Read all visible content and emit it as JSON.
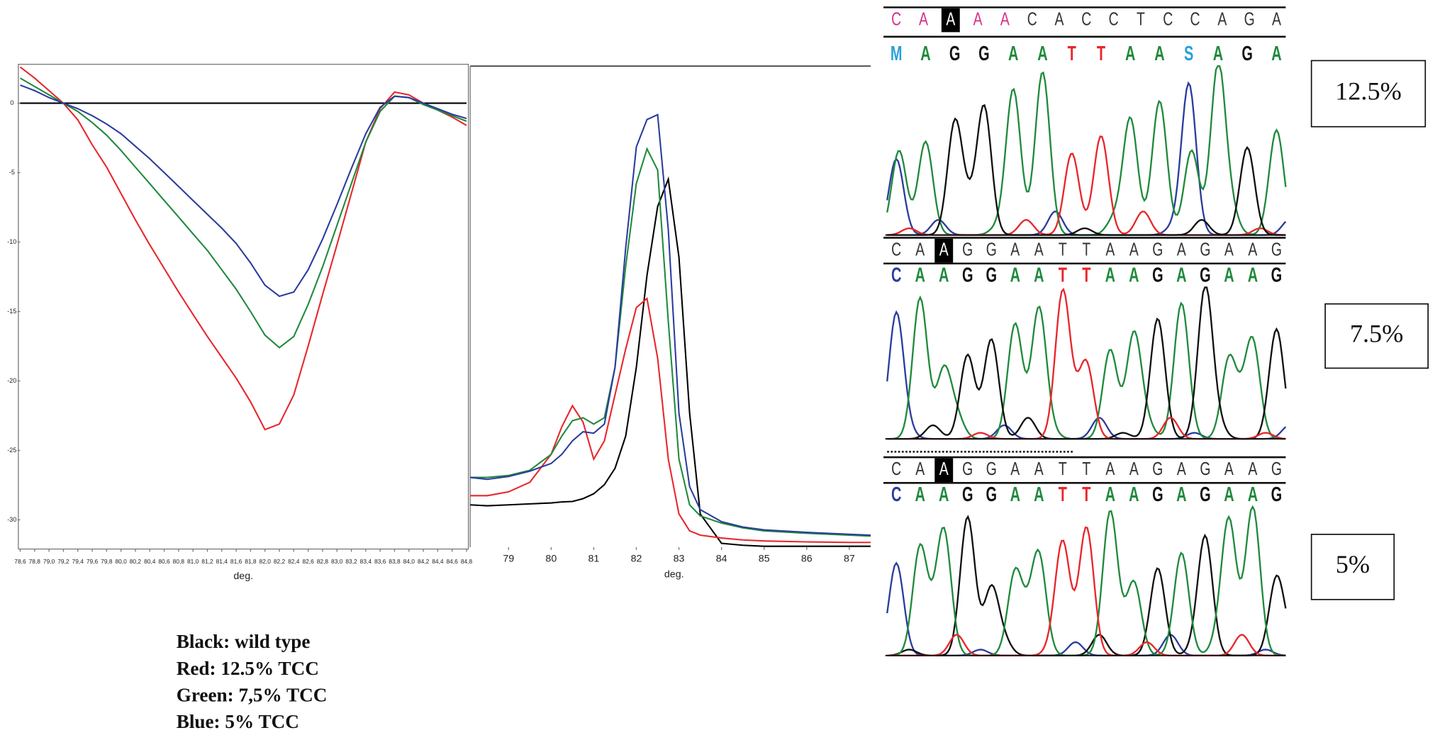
{
  "chart_data": [
    {
      "type": "line",
      "x": [
        78.6,
        78.8,
        79.0,
        79.2,
        79.4,
        79.6,
        79.8,
        80.0,
        80.2,
        80.4,
        80.6,
        80.8,
        81.0,
        81.2,
        81.4,
        81.6,
        81.8,
        82.0,
        82.2,
        82.4,
        82.6,
        82.8,
        83.0,
        83.2,
        83.4,
        83.6,
        83.8,
        84.0,
        84.2,
        84.4,
        84.6,
        84.8
      ],
      "series": [
        {
          "color": "#000000",
          "values": [
            0,
            0,
            0,
            0,
            0,
            0,
            0,
            0,
            0,
            0,
            0,
            0,
            0,
            0,
            0,
            0,
            0,
            0,
            0,
            0,
            0,
            0,
            0,
            0,
            0,
            0,
            0,
            0,
            0,
            0,
            0,
            0
          ]
        },
        {
          "color": "#e8262a",
          "values": [
            2.6,
            1.8,
            0.9,
            0.0,
            -1.2,
            -3.0,
            -4.6,
            -6.5,
            -8.4,
            -10.2,
            -11.9,
            -13.6,
            -15.2,
            -16.8,
            -18.3,
            -19.8,
            -21.5,
            -23.5,
            -23.1,
            -21.0,
            -17.5,
            -13.8,
            -10.2,
            -6.5,
            -2.8,
            -0.4,
            0.8,
            0.6,
            0.0,
            -0.5,
            -1.0,
            -1.6
          ]
        },
        {
          "color": "#1f8a3c",
          "values": [
            1.8,
            1.2,
            0.6,
            0.0,
            -0.6,
            -1.4,
            -2.3,
            -3.4,
            -4.6,
            -5.8,
            -7.0,
            -8.2,
            -9.4,
            -10.6,
            -12.0,
            -13.4,
            -15.0,
            -16.7,
            -17.6,
            -16.8,
            -14.5,
            -11.8,
            -8.8,
            -5.8,
            -2.8,
            -0.6,
            0.5,
            0.4,
            -0.1,
            -0.5,
            -0.9,
            -1.3
          ]
        },
        {
          "color": "#2b3c9e",
          "values": [
            1.3,
            0.9,
            0.4,
            0.0,
            -0.4,
            -0.9,
            -1.5,
            -2.2,
            -3.1,
            -4.0,
            -5.0,
            -6.0,
            -7.0,
            -8.0,
            -9.0,
            -10.1,
            -11.5,
            -13.1,
            -13.9,
            -13.6,
            -12.0,
            -9.8,
            -7.3,
            -4.7,
            -2.2,
            -0.3,
            0.5,
            0.4,
            0.0,
            -0.4,
            -0.8,
            -1.1
          ]
        }
      ],
      "xlim": [
        78.6,
        84.8
      ],
      "ylim": [
        -32.1,
        2.8
      ],
      "xticks": [
        {
          "value": 78.6,
          "label": "78,6"
        },
        {
          "value": 78.8,
          "label": "78,8"
        },
        {
          "value": 79.0,
          "label": "79,0"
        },
        {
          "value": 79.2,
          "label": "79,2"
        },
        {
          "value": 79.4,
          "label": "79,4"
        },
        {
          "value": 79.6,
          "label": "79,6"
        },
        {
          "value": 79.8,
          "label": "79,8"
        },
        {
          "value": 80.0,
          "label": "80,0"
        },
        {
          "value": 80.2,
          "label": "80,2"
        },
        {
          "value": 80.4,
          "label": "80,4"
        },
        {
          "value": 80.6,
          "label": "80,6"
        },
        {
          "value": 80.8,
          "label": "80,8"
        },
        {
          "value": 81.0,
          "label": "81,0"
        },
        {
          "value": 81.2,
          "label": "81,2"
        },
        {
          "value": 81.4,
          "label": "81,4"
        },
        {
          "value": 81.6,
          "label": "81,6"
        },
        {
          "value": 81.8,
          "label": "81,8"
        },
        {
          "value": 82.0,
          "label": "82,0"
        },
        {
          "value": 82.2,
          "label": "82,2"
        },
        {
          "value": 82.4,
          "label": "82,4"
        },
        {
          "value": 82.6,
          "label": "82,6"
        },
        {
          "value": 82.8,
          "label": "82,8"
        },
        {
          "value": 83.0,
          "label": "83,0"
        },
        {
          "value": 83.2,
          "label": "83,2"
        },
        {
          "value": 83.4,
          "label": "83,4"
        },
        {
          "value": 83.6,
          "label": "83,6"
        },
        {
          "value": 83.8,
          "label": "83,8"
        },
        {
          "value": 84.0,
          "label": "84,0"
        },
        {
          "value": 84.2,
          "label": "84,2"
        },
        {
          "value": 84.4,
          "label": "84,4"
        },
        {
          "value": 84.6,
          "label": "84,6"
        },
        {
          "value": 84.8,
          "label": "84,8"
        }
      ],
      "yticks": [
        0,
        -5,
        -10,
        -15,
        -20,
        -25,
        -30
      ],
      "x_label": "deg."
    },
    {
      "type": "line",
      "x": [
        78.1,
        78.5,
        79,
        79.5,
        80,
        80.25,
        80.5,
        80.75,
        81,
        81.25,
        81.5,
        81.75,
        82,
        82.25,
        82.5,
        82.75,
        83,
        83.25,
        83.5,
        84,
        84.5,
        85,
        86,
        87,
        87.5
      ],
      "series": [
        {
          "color": "#000000",
          "values": [
            8.8,
            8.6,
            8.8,
            9.0,
            9.2,
            9.4,
            9.5,
            10.1,
            11.1,
            13.0,
            16.4,
            23.1,
            37.4,
            56.5,
            70.8,
            76.5,
            60.3,
            27.9,
            6.9,
            0.8,
            0.4,
            0.2,
            0.2,
            0.2,
            0.2
          ]
        },
        {
          "color": "#e8262a",
          "values": [
            10.7,
            10.7,
            11.5,
            13.5,
            19.3,
            25.0,
            29.4,
            26.0,
            18.3,
            22.1,
            31.7,
            41.2,
            49.8,
            51.7,
            39.3,
            18.3,
            6.9,
            3.4,
            2.5,
            1.9,
            1.5,
            1.3,
            1.1,
            1.0,
            1.0
          ]
        },
        {
          "color": "#1f8a3c",
          "values": [
            14.5,
            14.5,
            14.9,
            16.0,
            19.3,
            23.1,
            26.3,
            26.9,
            25.6,
            26.9,
            37.4,
            58.4,
            75.6,
            82.8,
            78.4,
            46.9,
            18.3,
            8.8,
            6.5,
            5.0,
            4.0,
            3.4,
            2.9,
            2.5,
            2.3
          ]
        },
        {
          "color": "#2b3c9e",
          "values": [
            14.5,
            14.1,
            14.7,
            15.8,
            17.4,
            19.3,
            22.1,
            24.0,
            23.7,
            25.6,
            37.4,
            62.2,
            83.2,
            88.9,
            89.9,
            66.0,
            27.9,
            12.6,
            7.8,
            5.3,
            4.2,
            3.6,
            3.1,
            2.7,
            2.5
          ]
        }
      ],
      "xlim": [
        78.1,
        87.5
      ],
      "ylim": [
        0,
        100
      ],
      "xticks": [
        79,
        80,
        81,
        82,
        83,
        84,
        85,
        86,
        87
      ],
      "x_label": "deg."
    }
  ],
  "legend_text": [
    "Black: wild type",
    "Red: 12.5% TCC",
    "Green: 7,5% TCC",
    "Blue: 5% TCC"
  ],
  "sequencing": {
    "panels": [
      {
        "label": "12.5%",
        "top": [
          "C",
          "A",
          "A",
          "A",
          "A",
          "C",
          "A",
          "C",
          "C",
          "T",
          "C",
          "C",
          "A",
          "G",
          "A"
        ],
        "bottom": [
          "M",
          "A",
          "G",
          "G",
          "A",
          "A",
          "T",
          "T",
          "A",
          "A",
          "S",
          "A",
          "G",
          "A"
        ]
      },
      {
        "label": "7.5%",
        "top": [
          "C",
          "A",
          "A",
          "G",
          "G",
          "A",
          "A",
          "T",
          "T",
          "A",
          "A",
          "G",
          "A",
          "G",
          "A",
          "A",
          "G"
        ],
        "bottom": [
          "C",
          "A",
          "A",
          "G",
          "G",
          "A",
          "A",
          "T",
          "T",
          "A",
          "A",
          "G",
          "A",
          "G",
          "A",
          "A",
          "G"
        ]
      },
      {
        "label": "5%",
        "top": [
          "C",
          "A",
          "A",
          "G",
          "G",
          "A",
          "A",
          "T",
          "T",
          "A",
          "A",
          "G",
          "A",
          "G",
          "A",
          "A",
          "G"
        ],
        "bottom": [
          "C",
          "A",
          "A",
          "G",
          "G",
          "A",
          "A",
          "T",
          "T",
          "A",
          "A",
          "G",
          "A",
          "G",
          "A",
          "A",
          "G"
        ]
      }
    ]
  }
}
